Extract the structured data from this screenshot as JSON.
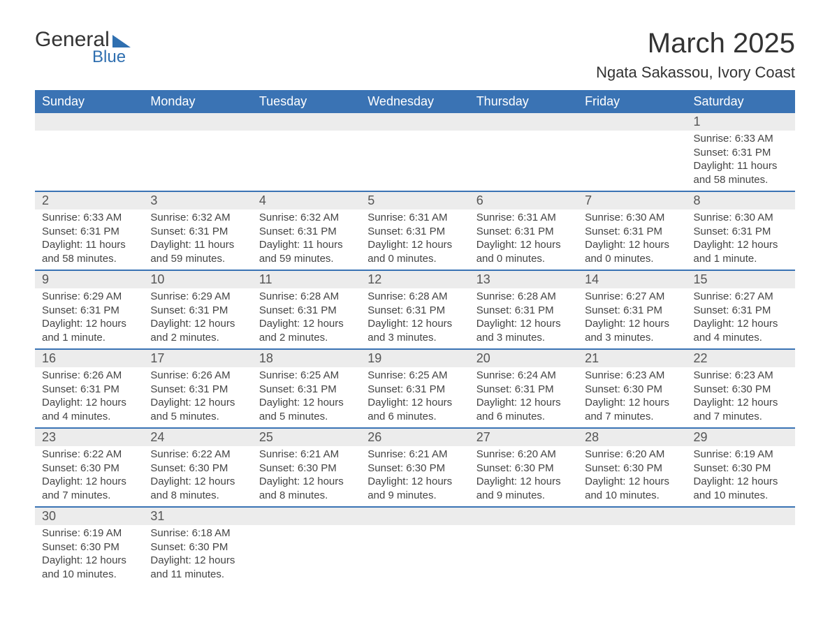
{
  "logo": {
    "text1": "General",
    "text2": "Blue"
  },
  "title": "March 2025",
  "location": "Ngata Sakassou, Ivory Coast",
  "colors": {
    "header_bg": "#3a73b4",
    "header_text": "#ffffff",
    "daynum_bg": "#ececec",
    "body_text": "#444444",
    "row_divider": "#3a73b4",
    "page_bg": "#ffffff",
    "logo_accent": "#2f6fb0"
  },
  "typography": {
    "title_fontsize": 40,
    "location_fontsize": 22,
    "dayheader_fontsize": 18,
    "daynum_fontsize": 18,
    "body_fontsize": 15
  },
  "days_of_week": [
    "Sunday",
    "Monday",
    "Tuesday",
    "Wednesday",
    "Thursday",
    "Friday",
    "Saturday"
  ],
  "weeks": [
    [
      null,
      null,
      null,
      null,
      null,
      null,
      {
        "n": "1",
        "sunrise": "Sunrise: 6:33 AM",
        "sunset": "Sunset: 6:31 PM",
        "daylight": "Daylight: 11 hours and 58 minutes."
      }
    ],
    [
      {
        "n": "2",
        "sunrise": "Sunrise: 6:33 AM",
        "sunset": "Sunset: 6:31 PM",
        "daylight": "Daylight: 11 hours and 58 minutes."
      },
      {
        "n": "3",
        "sunrise": "Sunrise: 6:32 AM",
        "sunset": "Sunset: 6:31 PM",
        "daylight": "Daylight: 11 hours and 59 minutes."
      },
      {
        "n": "4",
        "sunrise": "Sunrise: 6:32 AM",
        "sunset": "Sunset: 6:31 PM",
        "daylight": "Daylight: 11 hours and 59 minutes."
      },
      {
        "n": "5",
        "sunrise": "Sunrise: 6:31 AM",
        "sunset": "Sunset: 6:31 PM",
        "daylight": "Daylight: 12 hours and 0 minutes."
      },
      {
        "n": "6",
        "sunrise": "Sunrise: 6:31 AM",
        "sunset": "Sunset: 6:31 PM",
        "daylight": "Daylight: 12 hours and 0 minutes."
      },
      {
        "n": "7",
        "sunrise": "Sunrise: 6:30 AM",
        "sunset": "Sunset: 6:31 PM",
        "daylight": "Daylight: 12 hours and 0 minutes."
      },
      {
        "n": "8",
        "sunrise": "Sunrise: 6:30 AM",
        "sunset": "Sunset: 6:31 PM",
        "daylight": "Daylight: 12 hours and 1 minute."
      }
    ],
    [
      {
        "n": "9",
        "sunrise": "Sunrise: 6:29 AM",
        "sunset": "Sunset: 6:31 PM",
        "daylight": "Daylight: 12 hours and 1 minute."
      },
      {
        "n": "10",
        "sunrise": "Sunrise: 6:29 AM",
        "sunset": "Sunset: 6:31 PM",
        "daylight": "Daylight: 12 hours and 2 minutes."
      },
      {
        "n": "11",
        "sunrise": "Sunrise: 6:28 AM",
        "sunset": "Sunset: 6:31 PM",
        "daylight": "Daylight: 12 hours and 2 minutes."
      },
      {
        "n": "12",
        "sunrise": "Sunrise: 6:28 AM",
        "sunset": "Sunset: 6:31 PM",
        "daylight": "Daylight: 12 hours and 3 minutes."
      },
      {
        "n": "13",
        "sunrise": "Sunrise: 6:28 AM",
        "sunset": "Sunset: 6:31 PM",
        "daylight": "Daylight: 12 hours and 3 minutes."
      },
      {
        "n": "14",
        "sunrise": "Sunrise: 6:27 AM",
        "sunset": "Sunset: 6:31 PM",
        "daylight": "Daylight: 12 hours and 3 minutes."
      },
      {
        "n": "15",
        "sunrise": "Sunrise: 6:27 AM",
        "sunset": "Sunset: 6:31 PM",
        "daylight": "Daylight: 12 hours and 4 minutes."
      }
    ],
    [
      {
        "n": "16",
        "sunrise": "Sunrise: 6:26 AM",
        "sunset": "Sunset: 6:31 PM",
        "daylight": "Daylight: 12 hours and 4 minutes."
      },
      {
        "n": "17",
        "sunrise": "Sunrise: 6:26 AM",
        "sunset": "Sunset: 6:31 PM",
        "daylight": "Daylight: 12 hours and 5 minutes."
      },
      {
        "n": "18",
        "sunrise": "Sunrise: 6:25 AM",
        "sunset": "Sunset: 6:31 PM",
        "daylight": "Daylight: 12 hours and 5 minutes."
      },
      {
        "n": "19",
        "sunrise": "Sunrise: 6:25 AM",
        "sunset": "Sunset: 6:31 PM",
        "daylight": "Daylight: 12 hours and 6 minutes."
      },
      {
        "n": "20",
        "sunrise": "Sunrise: 6:24 AM",
        "sunset": "Sunset: 6:31 PM",
        "daylight": "Daylight: 12 hours and 6 minutes."
      },
      {
        "n": "21",
        "sunrise": "Sunrise: 6:23 AM",
        "sunset": "Sunset: 6:30 PM",
        "daylight": "Daylight: 12 hours and 7 minutes."
      },
      {
        "n": "22",
        "sunrise": "Sunrise: 6:23 AM",
        "sunset": "Sunset: 6:30 PM",
        "daylight": "Daylight: 12 hours and 7 minutes."
      }
    ],
    [
      {
        "n": "23",
        "sunrise": "Sunrise: 6:22 AM",
        "sunset": "Sunset: 6:30 PM",
        "daylight": "Daylight: 12 hours and 7 minutes."
      },
      {
        "n": "24",
        "sunrise": "Sunrise: 6:22 AM",
        "sunset": "Sunset: 6:30 PM",
        "daylight": "Daylight: 12 hours and 8 minutes."
      },
      {
        "n": "25",
        "sunrise": "Sunrise: 6:21 AM",
        "sunset": "Sunset: 6:30 PM",
        "daylight": "Daylight: 12 hours and 8 minutes."
      },
      {
        "n": "26",
        "sunrise": "Sunrise: 6:21 AM",
        "sunset": "Sunset: 6:30 PM",
        "daylight": "Daylight: 12 hours and 9 minutes."
      },
      {
        "n": "27",
        "sunrise": "Sunrise: 6:20 AM",
        "sunset": "Sunset: 6:30 PM",
        "daylight": "Daylight: 12 hours and 9 minutes."
      },
      {
        "n": "28",
        "sunrise": "Sunrise: 6:20 AM",
        "sunset": "Sunset: 6:30 PM",
        "daylight": "Daylight: 12 hours and 10 minutes."
      },
      {
        "n": "29",
        "sunrise": "Sunrise: 6:19 AM",
        "sunset": "Sunset: 6:30 PM",
        "daylight": "Daylight: 12 hours and 10 minutes."
      }
    ],
    [
      {
        "n": "30",
        "sunrise": "Sunrise: 6:19 AM",
        "sunset": "Sunset: 6:30 PM",
        "daylight": "Daylight: 12 hours and 10 minutes."
      },
      {
        "n": "31",
        "sunrise": "Sunrise: 6:18 AM",
        "sunset": "Sunset: 6:30 PM",
        "daylight": "Daylight: 12 hours and 11 minutes."
      },
      null,
      null,
      null,
      null,
      null
    ]
  ]
}
